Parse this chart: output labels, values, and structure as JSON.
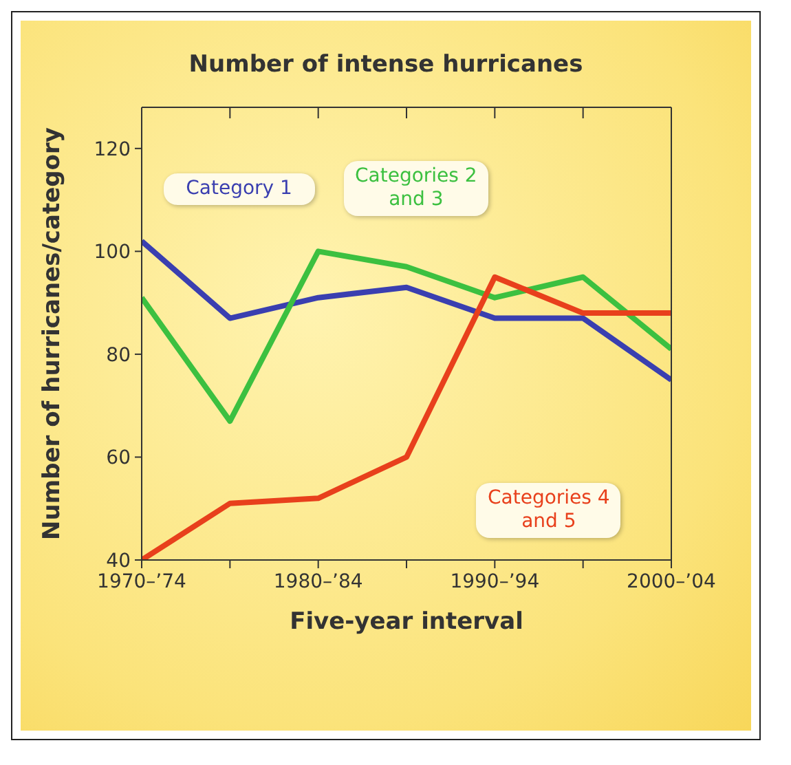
{
  "chart_data": {
    "type": "line",
    "title": "Number of intense hurricanes",
    "xlabel": "Five-year interval",
    "ylabel": "Number of hurricanes/category",
    "categories": [
      "1970–’74",
      null,
      "1980–’84",
      null,
      "1990–’94",
      null,
      "2000–’04"
    ],
    "series": [
      {
        "name": "Category 1",
        "color": "#3a3fb0",
        "values": [
          102,
          87,
          91,
          93,
          87,
          87,
          75
        ]
      },
      {
        "name": "Categories 2 and 3",
        "color": "#3cc040",
        "values": [
          91,
          67,
          100,
          97,
          91,
          95,
          81
        ]
      },
      {
        "name": "Categories 4 and 5",
        "color": "#e8401c",
        "values": [
          40,
          51,
          52,
          60,
          95,
          88,
          88
        ]
      }
    ],
    "ylim": [
      40,
      128
    ],
    "yticks": [
      40,
      60,
      80,
      100,
      120
    ],
    "grid": false,
    "legend": false,
    "marker": "none",
    "line_style": "solid"
  }
}
